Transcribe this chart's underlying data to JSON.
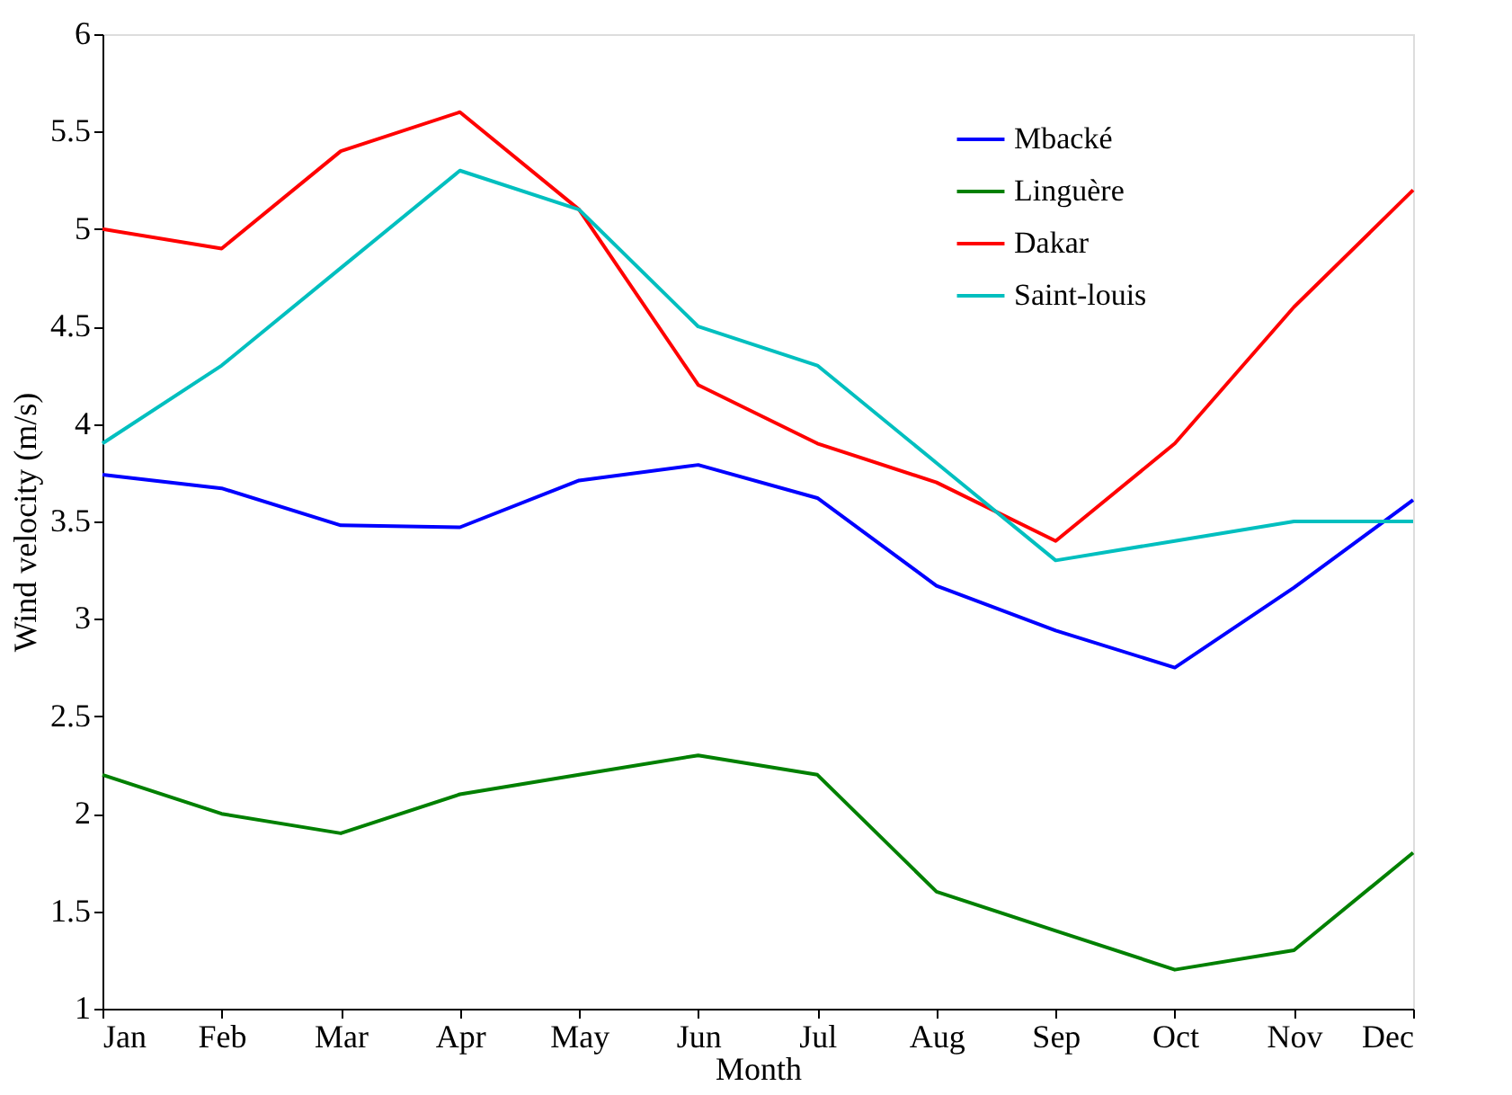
{
  "chart_data": {
    "type": "line",
    "xlabel": "Month",
    "ylabel": "Wind velocity (m/s)",
    "categories": [
      "Jan",
      "Feb",
      "Mar",
      "Apr",
      "May",
      "Jun",
      "Jul",
      "Aug",
      "Sep",
      "Oct",
      "Nov",
      "Dec"
    ],
    "series": [
      {
        "name": "Mbacké",
        "color": "#0000ff",
        "values": [
          3.74,
          3.67,
          3.48,
          3.47,
          3.71,
          3.79,
          3.62,
          3.17,
          2.94,
          2.75,
          3.16,
          3.61
        ]
      },
      {
        "name": "Linguère",
        "color": "#008000",
        "values": [
          2.2,
          2.0,
          1.9,
          2.1,
          2.2,
          2.3,
          2.2,
          1.6,
          1.4,
          1.2,
          1.3,
          1.8
        ]
      },
      {
        "name": "Dakar",
        "color": "#ff0000",
        "values": [
          5.0,
          4.9,
          5.4,
          5.6,
          5.1,
          4.2,
          3.9,
          3.7,
          3.4,
          3.9,
          4.6,
          5.2
        ]
      },
      {
        "name": "Saint-louis",
        "color": "#00bfbf",
        "values": [
          3.9,
          4.3,
          4.8,
          5.3,
          5.1,
          4.5,
          4.3,
          3.8,
          3.3,
          3.4,
          3.5,
          3.5
        ]
      }
    ],
    "ylim": [
      1,
      6
    ],
    "yticks": [
      1,
      1.5,
      2,
      2.5,
      3,
      3.5,
      4,
      4.5,
      5,
      5.5,
      6
    ],
    "grid": false,
    "legend": "top right",
    "marker": "none",
    "line_style": "solid"
  }
}
